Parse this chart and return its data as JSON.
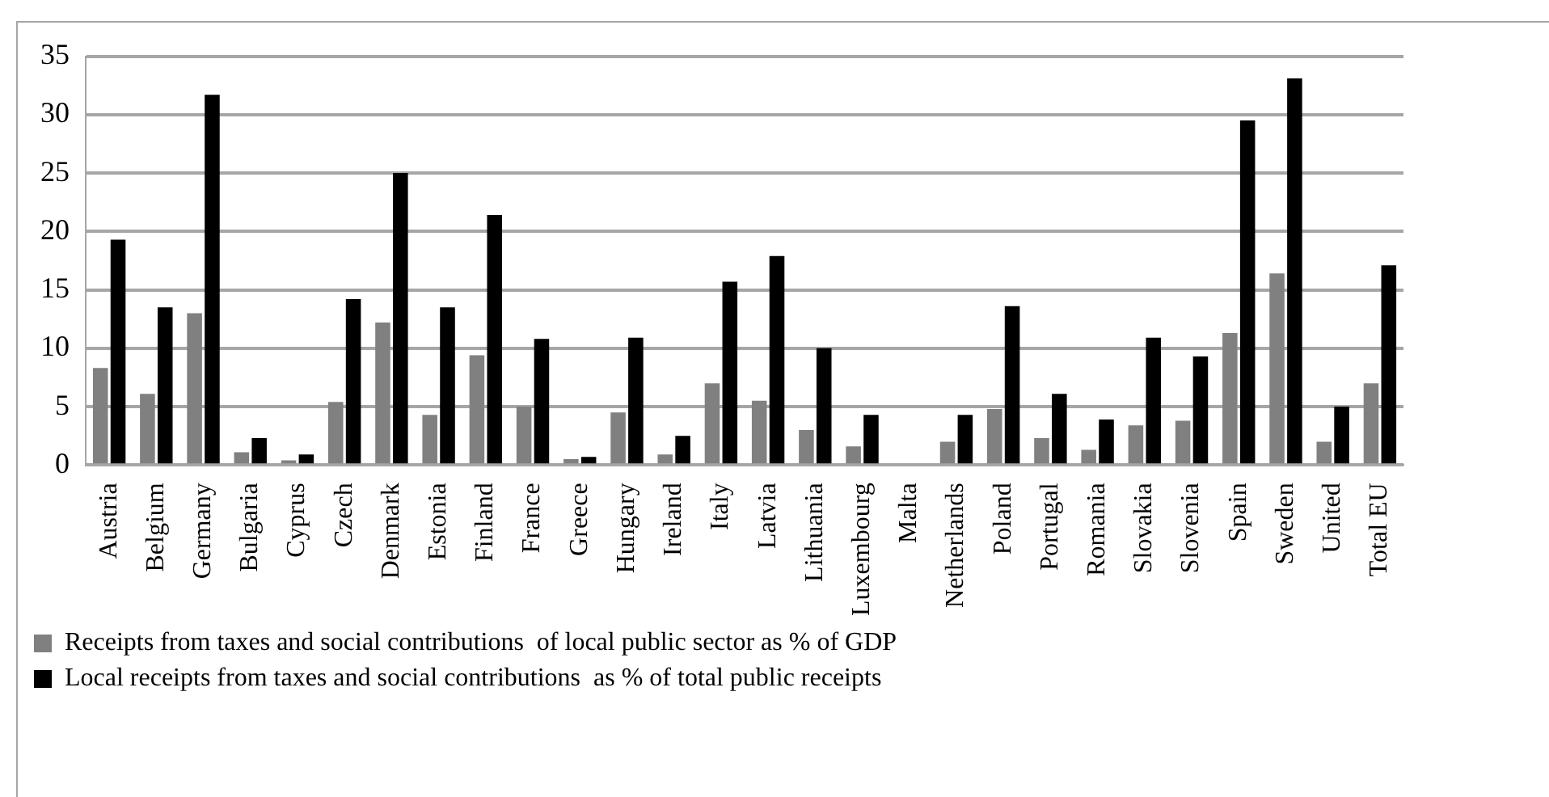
{
  "chart_data": {
    "type": "bar",
    "categories": [
      "Austria",
      "Belgium",
      "Germany",
      "Bulgaria",
      "Cyprus",
      "Czech",
      "Denmark",
      "Estonia",
      "Finland",
      "France",
      "Greece",
      "Hungary",
      "Ireland",
      "Italy",
      "Latvia",
      "Lithuania",
      "Luxembourg",
      "Malta",
      "Netherlands",
      "Poland",
      "Portugal",
      "Romania",
      "Slovakia",
      "Slovenia",
      "Spain",
      "Sweden",
      "United",
      "Total EU"
    ],
    "series": [
      {
        "name": "Receipts from taxes and social contributions  of local public sector as % of GDP",
        "color": "#808080",
        "values": [
          8.3,
          6.1,
          13.0,
          1.1,
          0.4,
          5.4,
          12.2,
          4.3,
          9.4,
          5.0,
          0.5,
          4.5,
          0.9,
          7.0,
          5.5,
          3.0,
          1.6,
          null,
          2.0,
          4.8,
          2.3,
          1.3,
          3.4,
          3.8,
          11.3,
          16.4,
          2.0,
          7.0
        ]
      },
      {
        "name": "Local receipts from taxes and social contributions  as % of total public receipts",
        "color": "#000000",
        "values": [
          19.3,
          13.5,
          31.7,
          2.3,
          0.9,
          14.2,
          25.0,
          13.5,
          21.4,
          10.8,
          0.7,
          10.9,
          2.5,
          15.7,
          17.9,
          10.0,
          4.3,
          null,
          4.3,
          13.6,
          6.1,
          3.9,
          10.9,
          9.3,
          29.5,
          33.1,
          5.0,
          17.1
        ]
      }
    ],
    "ylim": [
      0,
      35
    ],
    "yticks": [
      0,
      5,
      10,
      15,
      20,
      25,
      30,
      35
    ],
    "grid": "y",
    "legend": "bottom"
  }
}
